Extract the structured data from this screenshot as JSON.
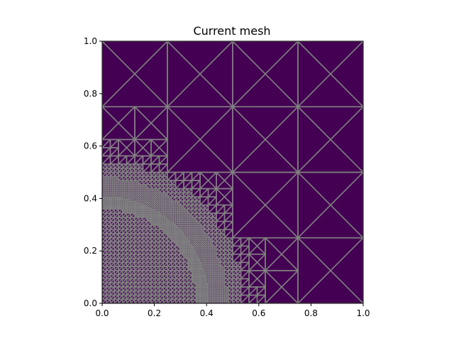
{
  "chart_data": {
    "type": "heatmap",
    "title": "Current mesh",
    "xlabel": "",
    "ylabel": "",
    "xlim": [
      0.0,
      1.0
    ],
    "ylim": [
      0.0,
      1.0
    ],
    "x_ticks": [
      "0.0",
      "0.2",
      "0.4",
      "0.6",
      "0.8",
      "1.0"
    ],
    "y_ticks": [
      "0.0",
      "0.2",
      "0.4",
      "0.6",
      "0.8",
      "1.0"
    ],
    "grid": false,
    "legend": "none",
    "colors": {
      "field": "#440154",
      "mesh_lines": "#808080",
      "refined_region": "#808080"
    },
    "mesh": {
      "description_values": "adaptive triangular mesh refined toward a circular front of radius ~0.4 centered at origin",
      "front_radius": 0.42,
      "max_depth": 7,
      "min_depth": 2
    }
  }
}
